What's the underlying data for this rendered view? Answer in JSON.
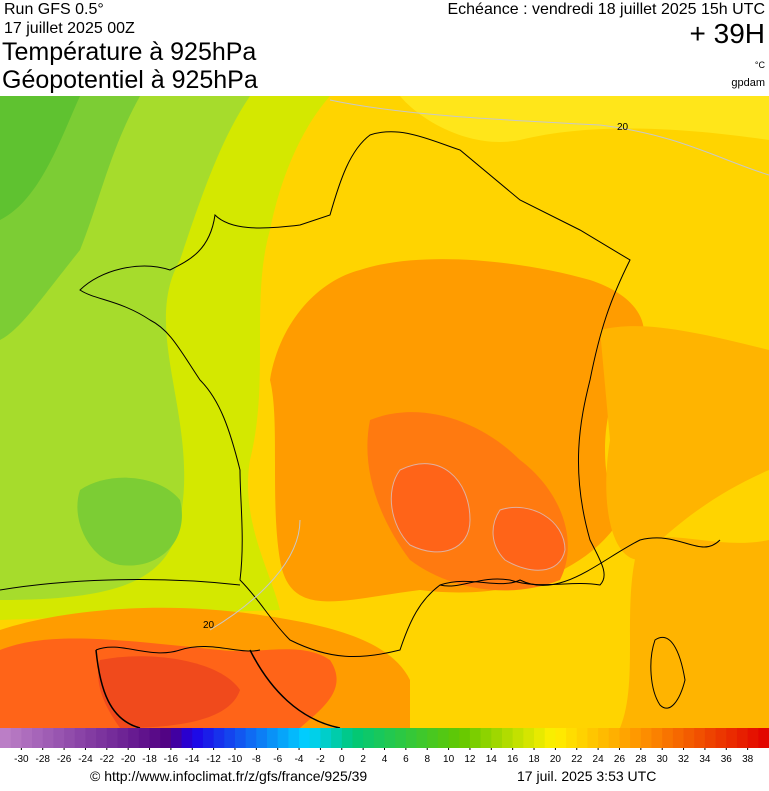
{
  "header": {
    "run": "Run GFS 0.5°",
    "date": "17 juillet 2025 00Z",
    "title1": "Température à 925hPa",
    "title2": "Géopotentiel à 925hPa",
    "echeance": "Echéance : vendredi 18 juillet 2025 15h UTC",
    "offset": "+ 39H",
    "unit": "°C",
    "brand": "gpdam"
  },
  "map": {
    "contour_labels": [
      "20",
      "20"
    ]
  },
  "colorbar": {
    "ticks": [
      -30,
      -28,
      -26,
      -24,
      -22,
      -20,
      -18,
      -16,
      -14,
      -12,
      -10,
      -8,
      -6,
      -4,
      -2,
      0,
      2,
      4,
      6,
      8,
      10,
      12,
      14,
      16,
      18,
      20,
      22,
      24,
      26,
      28,
      30,
      32,
      34,
      36,
      38
    ],
    "range": [
      -32,
      40
    ]
  },
  "footer": {
    "source": "© http://www.infoclimat.fr/z/gfs/france/925/39",
    "generated": "17 juil. 2025  3:53 UTC"
  }
}
